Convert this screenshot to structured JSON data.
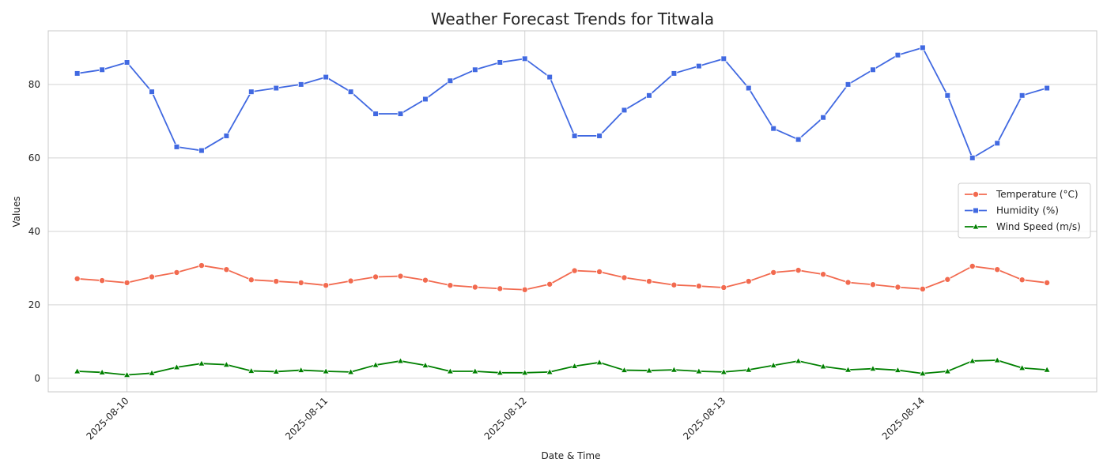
{
  "chart_data": {
    "type": "line",
    "title": "Weather Forecast Trends for Titwala",
    "xlabel": "Date & Time",
    "ylabel": "Values",
    "x_start": "2025-08-09 18:00",
    "x_step_hours": 3,
    "xlim": [
      "2025-08-09 14:30",
      "2025-08-14 21:00"
    ],
    "ylim": [
      -3.7,
      94.6
    ],
    "x_ticks": [
      "2025-08-10",
      "2025-08-11",
      "2025-08-12",
      "2025-08-13",
      "2025-08-14"
    ],
    "y_ticks": [
      0,
      20,
      40,
      60,
      80
    ],
    "grid": true,
    "legend_position": "center-right",
    "series": [
      {
        "name": "Temperature (°C)",
        "color": "#f26a4f",
        "marker": "circle",
        "values": [
          27.1,
          26.6,
          26.0,
          27.6,
          28.8,
          30.7,
          29.6,
          26.8,
          26.4,
          26.0,
          25.3,
          26.5,
          27.6,
          27.8,
          26.7,
          25.3,
          24.8,
          24.4,
          24.1,
          25.6,
          29.3,
          29.0,
          27.4,
          26.4,
          25.4,
          25.1,
          24.7,
          26.4,
          28.8,
          29.4,
          28.3,
          26.1,
          25.5,
          24.8,
          24.3,
          26.9,
          30.5,
          29.6,
          26.8,
          26.0
        ]
      },
      {
        "name": "Humidity (%)",
        "color": "#4169e1",
        "marker": "square",
        "values": [
          83,
          84,
          86,
          78,
          63,
          62,
          66,
          78,
          79,
          80,
          82,
          78,
          72,
          72,
          76,
          81,
          84,
          86,
          87,
          82,
          66,
          66,
          73,
          77,
          83,
          85,
          87,
          79,
          68,
          65,
          71,
          80,
          84,
          88,
          90,
          77,
          60,
          64,
          77,
          79
        ]
      },
      {
        "name": "Wind Speed (m/s)",
        "color": "#008000",
        "marker": "triangle",
        "values": [
          1.9,
          1.6,
          0.9,
          1.4,
          3.0,
          4.0,
          3.7,
          2.0,
          1.8,
          2.2,
          1.9,
          1.7,
          3.6,
          4.7,
          3.5,
          1.9,
          1.9,
          1.5,
          1.5,
          1.7,
          3.3,
          4.3,
          2.2,
          2.1,
          2.3,
          1.9,
          1.7,
          2.3,
          3.5,
          4.7,
          3.2,
          2.3,
          2.6,
          2.2,
          1.3,
          1.9,
          4.7,
          4.9,
          2.8,
          2.3
        ]
      }
    ]
  }
}
